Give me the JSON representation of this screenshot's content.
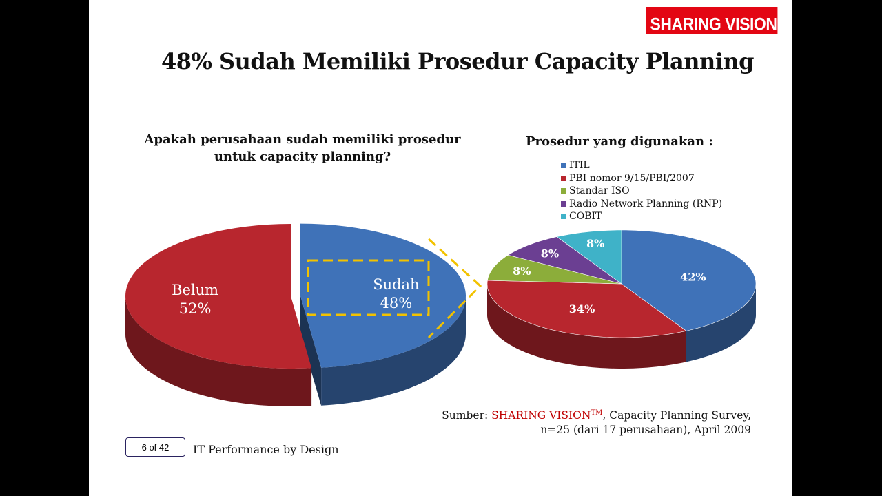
{
  "logo": {
    "text": "SHARING VISION",
    "tm": "TM"
  },
  "title": "48% Sudah Memiliki Prosedur Capacity Planning",
  "footer": {
    "page": "6 of 42",
    "tagline": "IT Performance by Design",
    "source_prefix": "Sumber: ",
    "source_brand": "SHARING VISION",
    "source_tm": "TM",
    "source_rest": ", Capacity Planning Survey,",
    "source_line2": "n=25 (dari 17 perusahaan), April 2009"
  },
  "chart_data": [
    {
      "type": "pie",
      "title_line1": "Apakah perusahaan sudah memiliki prosedur",
      "title_line2": "untuk capacity planning?",
      "slices": [
        {
          "name": "Sudah",
          "value": 48,
          "label": "48%",
          "color": "#3f72b8",
          "exploded": true
        },
        {
          "name": "Belum",
          "value": 52,
          "label": "52%",
          "color": "#b8262e"
        }
      ]
    },
    {
      "type": "pie",
      "title": "Prosedur yang digunakan :",
      "legend_position": "top",
      "slices": [
        {
          "name": "ITIL",
          "value": 42,
          "label": "42%",
          "color": "#3f72b8"
        },
        {
          "name": "PBI nomor 9/15/PBI/2007",
          "value": 34,
          "label": "34%",
          "color": "#b8262e"
        },
        {
          "name": "Standar ISO",
          "value": 8,
          "label": "8%",
          "color": "#8cad3a"
        },
        {
          "name": "Radio Network Planning (RNP)",
          "value": 8,
          "label": "8%",
          "color": "#6b3f92"
        },
        {
          "name": "COBIT",
          "value": 8,
          "label": "8%",
          "color": "#3fb2c8"
        }
      ]
    }
  ]
}
